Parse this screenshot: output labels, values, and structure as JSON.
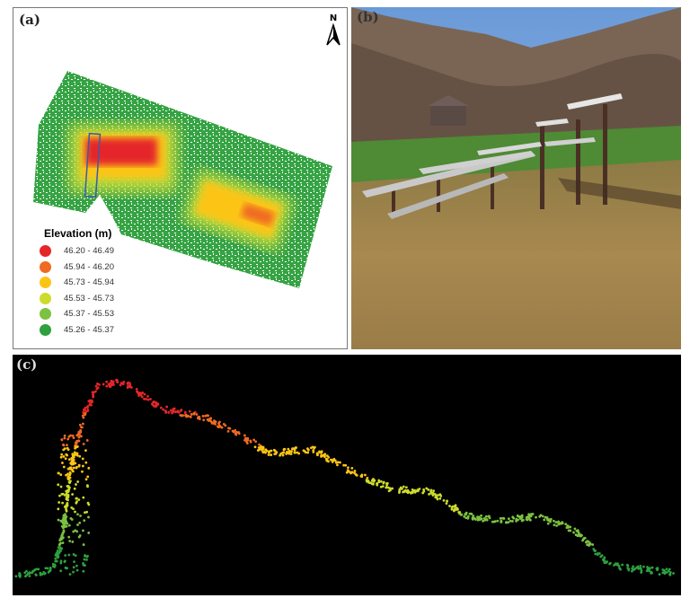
{
  "panels": {
    "a": {
      "label": "(a)",
      "north_arrow": "N",
      "legend": {
        "title": "Elevation (m)",
        "items": [
          {
            "range": "46.20 - 46.49",
            "color": "#e4262a"
          },
          {
            "range": "45.94 - 46.20",
            "color": "#ef6a22"
          },
          {
            "range": "45.73 - 45.94",
            "color": "#fcc515"
          },
          {
            "range": "45.53 - 45.73",
            "color": "#cddc2c"
          },
          {
            "range": "45.37 - 45.53",
            "color": "#7cc142"
          },
          {
            "range": "45.26 - 45.37",
            "color": "#2ea03e"
          }
        ]
      }
    },
    "b": {
      "label": "(b)"
    },
    "c": {
      "label": "(c)",
      "background": "#000000"
    }
  }
}
